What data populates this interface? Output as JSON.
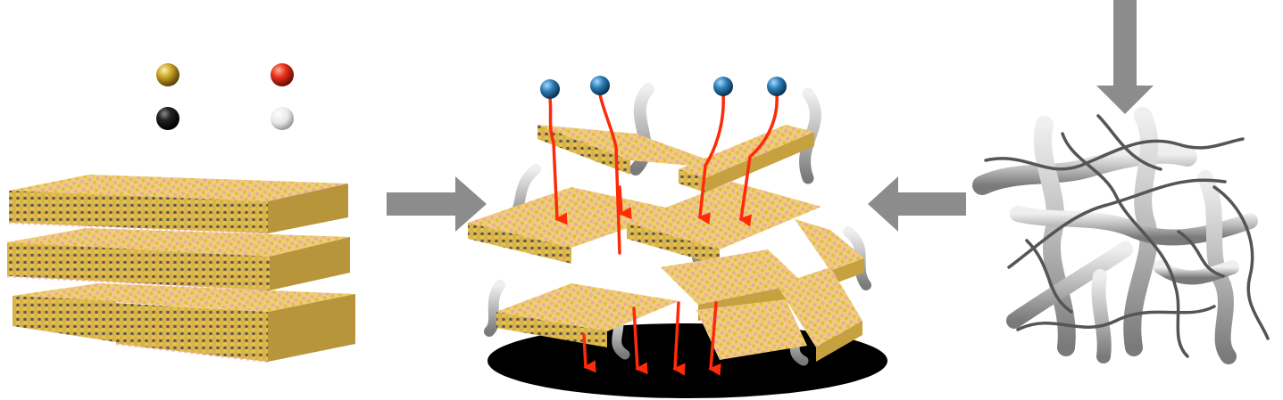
{
  "figure": {
    "panels": [
      "layered-crystal-stack",
      "composite-assembly",
      "polymer-network"
    ],
    "legend_atoms": [
      {
        "name": "gold-atom",
        "color": "#c9a227"
      },
      {
        "name": "red-atom",
        "color": "#e8301a"
      },
      {
        "name": "black-atom",
        "color": "#111111"
      },
      {
        "name": "white-atom",
        "color": "#f2f2f2"
      }
    ],
    "ion_color": "#2e7fb8",
    "flow_arrow_color": "#ff2a0a",
    "process_arrow_color": "#8c8c8c",
    "substrate_color": "#000000",
    "sheet_colors": {
      "top": "#e9c96a",
      "edge": "#c9a227",
      "speckle": "#e8a0a0"
    },
    "polymer_color": "#bdbdbd"
  }
}
